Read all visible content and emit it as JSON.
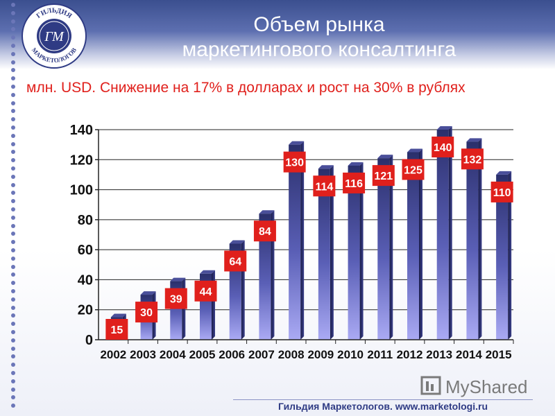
{
  "header": {
    "title_line1": "Объем рынка",
    "title_line2": "маркетингового консалтинга",
    "subtitle": "млн. USD. Снижение на 17% в долларах и рост на 30% в рублях"
  },
  "logo": {
    "text_top": "ГИЛЬДИЯ",
    "text_bottom": "МАРКЕТОЛОГОВ",
    "monogram": "ГМ"
  },
  "watermark": {
    "text": "MyShared"
  },
  "footer": {
    "text": "Гильдия Маркетологов. www.marketologi.ru"
  },
  "colors": {
    "header_blue": "#3b4f8f",
    "bar_top": "#2a2f6b",
    "bar_bottom": "#a9a9f2",
    "label_red": "#e0201c",
    "subtitle_red": "#e0201c"
  },
  "chart_data": {
    "type": "bar",
    "categories": [
      "2002",
      "2003",
      "2004",
      "2005",
      "2006",
      "2007",
      "2008",
      "2009",
      "2010",
      "2011",
      "2012",
      "2013",
      "2014",
      "2015"
    ],
    "values": [
      15,
      30,
      39,
      44,
      64,
      84,
      130,
      114,
      116,
      121,
      125,
      140,
      132,
      110
    ],
    "data_labels": [
      "15",
      "30",
      "39",
      "44",
      "64",
      "84",
      "130",
      "114",
      "116",
      "121",
      "125",
      "140",
      "132",
      "110"
    ],
    "y_ticks": [
      "0",
      "20",
      "40",
      "60",
      "80",
      "100",
      "120",
      "140"
    ],
    "ylim": [
      0,
      140
    ],
    "grid": true,
    "legend": "none"
  }
}
